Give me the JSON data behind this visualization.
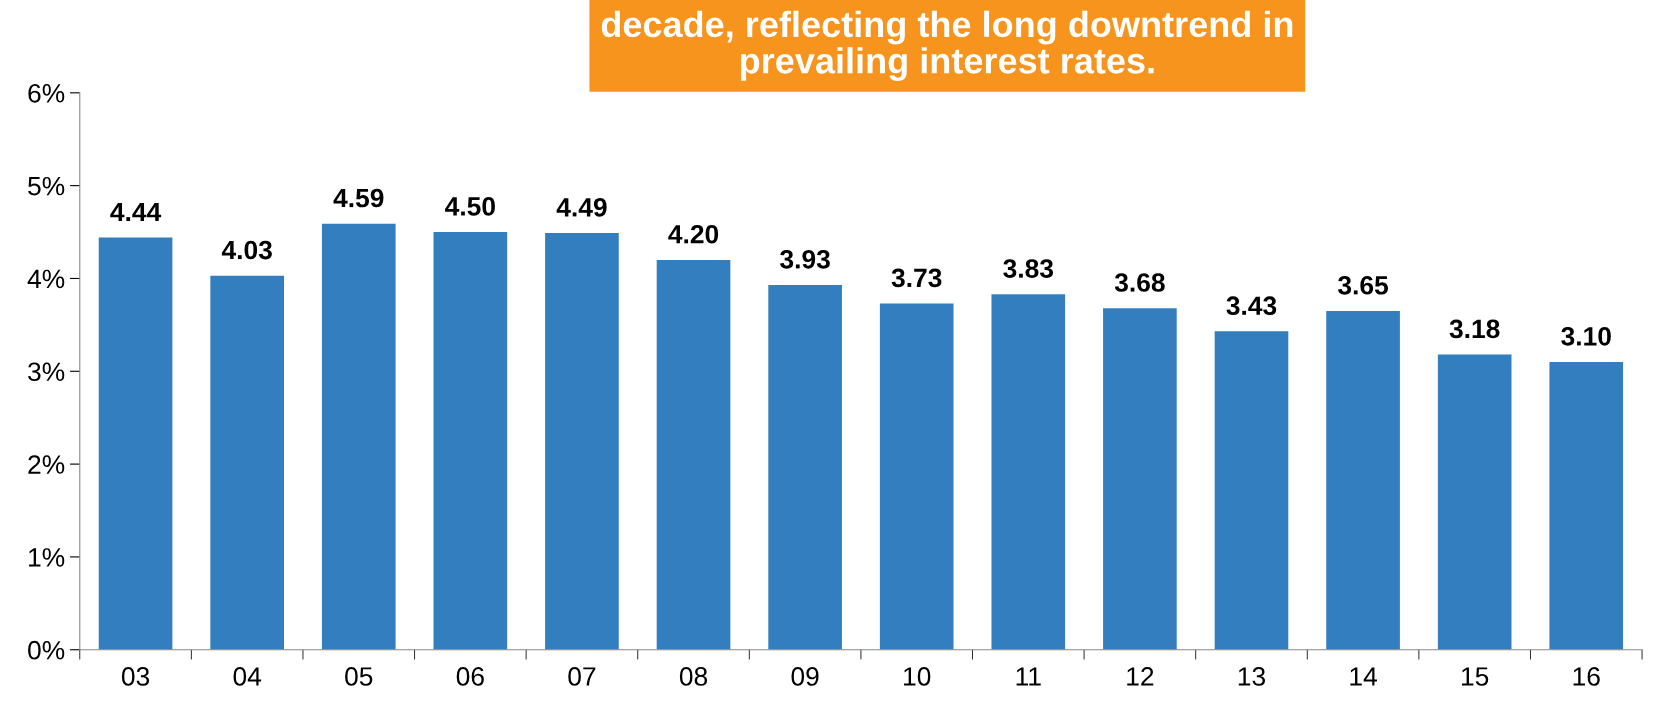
{
  "chart_data": {
    "type": "bar",
    "categories": [
      "03",
      "04",
      "05",
      "06",
      "07",
      "08",
      "09",
      "10",
      "11",
      "12",
      "13",
      "14",
      "15",
      "16"
    ],
    "values": [
      4.44,
      4.03,
      4.59,
      4.5,
      4.49,
      4.2,
      3.93,
      3.73,
      3.83,
      3.68,
      3.43,
      3.65,
      3.18,
      3.1
    ],
    "value_labels": [
      "4.44",
      "4.03",
      "4.59",
      "4.50",
      "4.49",
      "4.20",
      "3.93",
      "3.73",
      "3.83",
      "3.68",
      "3.43",
      "3.65",
      "3.18",
      "3.10"
    ],
    "color": "#337ebf",
    "ylim": [
      0,
      6
    ],
    "yticks": [
      {
        "value": 0,
        "label": "0%"
      },
      {
        "value": 1,
        "label": "1%"
      },
      {
        "value": 2,
        "label": "2%"
      },
      {
        "value": 3,
        "label": "3%"
      },
      {
        "value": 4,
        "label": "4%"
      },
      {
        "value": 5,
        "label": "5%"
      },
      {
        "value": 6,
        "label": "6%"
      }
    ],
    "annotations": [
      "decade, reflecting the long downtrend in\nprevailing interest rates."
    ],
    "grid": false,
    "legend": false
  }
}
